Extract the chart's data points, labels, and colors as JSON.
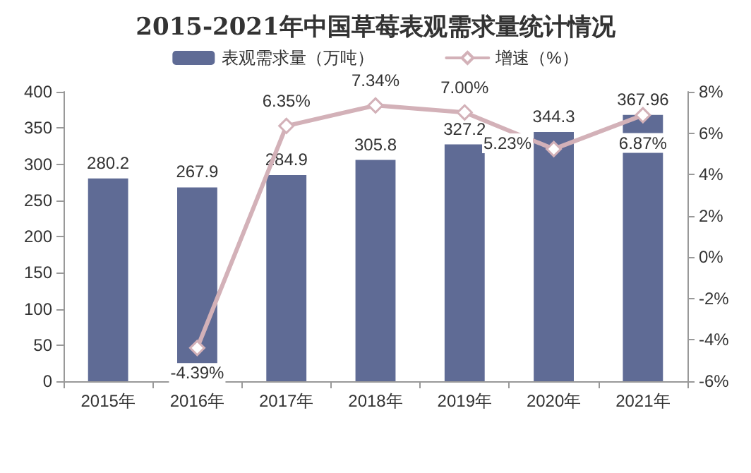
{
  "chart_data": {
    "type": "bar",
    "title": "2015-2021年中国草莓表观需求量统计情况",
    "categories": [
      "2015年",
      "2016年",
      "2017年",
      "2018年",
      "2019年",
      "2020年",
      "2021年"
    ],
    "series": [
      {
        "name": "表观需求量（万吨）",
        "color": "#5f6b95",
        "values": [
          280.2,
          267.9,
          284.9,
          305.8,
          327.2,
          344.3,
          367.96
        ],
        "value_labels": [
          "280.2",
          "267.9",
          "284.9",
          "305.8",
          "327.2",
          "344.3",
          "367.96"
        ]
      },
      {
        "name": "增速（%）",
        "type": "line",
        "axis": "y2",
        "color": "#d3b1b8",
        "marker": "diamond",
        "values": [
          null,
          -4.39,
          6.35,
          7.34,
          7.0,
          5.23,
          6.87
        ],
        "value_labels": [
          null,
          "-4.39%",
          "6.35%",
          "7.34%",
          "7.00%",
          "5.23%",
          "6.87%"
        ]
      }
    ],
    "ylim": [
      0,
      400
    ],
    "yticks": [
      0,
      50,
      100,
      150,
      200,
      250,
      300,
      350,
      400
    ],
    "y2lim": [
      -6,
      8
    ],
    "y2ticks": [
      {
        "value": -6,
        "label": "-6%"
      },
      {
        "value": -4,
        "label": "-4%"
      },
      {
        "value": -2,
        "label": "-2%"
      },
      {
        "value": 0,
        "label": "0%"
      },
      {
        "value": 2,
        "label": "2%"
      },
      {
        "value": 4,
        "label": "4%"
      },
      {
        "value": 6,
        "label": "6%"
      },
      {
        "value": 8,
        "label": "8%"
      }
    ],
    "legend": "top",
    "grid": false
  }
}
